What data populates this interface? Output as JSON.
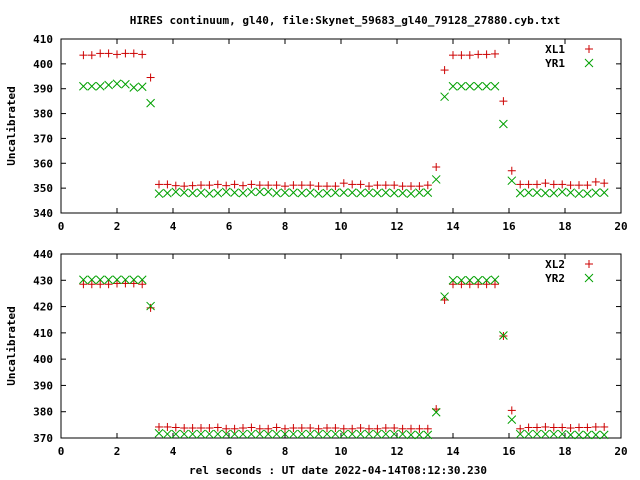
{
  "title": "HIRES continuum, gl40, file:Skynet_59683_gl40_79128_27880.cyb.txt",
  "xlabel": "rel seconds : UT date 2022-04-14T08:12:30.230",
  "chart_data": [
    {
      "type": "scatter",
      "ylabel": "Uncalibrated",
      "xlim": [
        0,
        20
      ],
      "ylim": [
        340,
        410
      ],
      "xticks": [
        0,
        2,
        4,
        6,
        8,
        10,
        12,
        14,
        16,
        18,
        20
      ],
      "yticks": [
        340,
        350,
        360,
        370,
        380,
        390,
        400,
        410
      ],
      "legend_position": "top-right",
      "series": [
        {
          "name": "XL1",
          "marker": "+",
          "color": "#cc0000",
          "x": [
            0.8,
            1.1,
            1.4,
            1.7,
            2.0,
            2.3,
            2.6,
            2.9,
            3.2,
            3.5,
            3.8,
            4.1,
            4.4,
            4.7,
            5.0,
            5.3,
            5.6,
            5.9,
            6.2,
            6.5,
            6.8,
            7.1,
            7.4,
            7.7,
            8.0,
            8.3,
            8.6,
            8.9,
            9.2,
            9.5,
            9.8,
            10.1,
            10.4,
            10.7,
            11.0,
            11.3,
            11.6,
            11.9,
            12.2,
            12.5,
            12.8,
            13.1,
            13.4,
            13.7,
            14.0,
            14.3,
            14.6,
            14.9,
            15.2,
            15.5,
            15.8,
            16.1,
            16.4,
            16.7,
            17.0,
            17.3,
            17.6,
            17.9,
            18.2,
            18.5,
            18.8,
            19.1,
            19.4
          ],
          "y": [
            403.5,
            403.5,
            404.2,
            404.2,
            403.8,
            404.2,
            404.2,
            403.8,
            394.5,
            351.5,
            351.5,
            351,
            350.8,
            351,
            351.2,
            351.2,
            351.5,
            351,
            351.5,
            351,
            351.5,
            351.2,
            351.2,
            351.2,
            350.8,
            351.2,
            351.2,
            351.2,
            350.8,
            350.8,
            350.8,
            352,
            351.5,
            351.5,
            350.8,
            351.2,
            351.2,
            351.2,
            350.8,
            350.8,
            350.8,
            351.2,
            358.5,
            397.5,
            403.5,
            403.5,
            403.5,
            403.8,
            403.8,
            404,
            385,
            357,
            351.5,
            351.5,
            351.5,
            352,
            351.5,
            351.5,
            351.2,
            351.2,
            351.2,
            352.5,
            352
          ]
        },
        {
          "name": "YR1",
          "marker": "x",
          "color": "#00a000",
          "x": [
            0.8,
            1.1,
            1.4,
            1.7,
            2.0,
            2.3,
            2.6,
            2.9,
            3.2,
            3.5,
            3.8,
            4.1,
            4.4,
            4.7,
            5.0,
            5.3,
            5.6,
            5.9,
            6.2,
            6.5,
            6.8,
            7.1,
            7.4,
            7.7,
            8.0,
            8.3,
            8.6,
            8.9,
            9.2,
            9.5,
            9.8,
            10.1,
            10.4,
            10.7,
            11.0,
            11.3,
            11.6,
            11.9,
            12.2,
            12.5,
            12.8,
            13.1,
            13.4,
            13.7,
            14.0,
            14.3,
            14.6,
            14.9,
            15.2,
            15.5,
            15.8,
            16.1,
            16.4,
            16.7,
            17.0,
            17.3,
            17.6,
            17.9,
            18.2,
            18.5,
            18.8,
            19.1,
            19.4
          ],
          "y": [
            391,
            391,
            391,
            391.5,
            392,
            391.8,
            390.5,
            390.8,
            384.2,
            347.8,
            348,
            348.5,
            348.2,
            348,
            348.2,
            347.8,
            348,
            348.5,
            348.2,
            348,
            348.5,
            348.5,
            348.5,
            348,
            348.2,
            348.2,
            348,
            348.2,
            347.8,
            348,
            348.2,
            348.2,
            348.2,
            348,
            348.2,
            348,
            348.2,
            348,
            348,
            347.8,
            348.2,
            348.2,
            353.5,
            386.8,
            391,
            391,
            391,
            391,
            391,
            391,
            375.8,
            353,
            348,
            348.2,
            348.2,
            348,
            348,
            348.5,
            348.2,
            347.8,
            347.8,
            348.2,
            348.2
          ]
        }
      ]
    },
    {
      "type": "scatter",
      "ylabel": "Uncalibrated",
      "xlim": [
        0,
        20
      ],
      "ylim": [
        370,
        440
      ],
      "xticks": [
        0,
        2,
        4,
        6,
        8,
        10,
        12,
        14,
        16,
        18,
        20
      ],
      "yticks": [
        370,
        380,
        390,
        400,
        410,
        420,
        430,
        440
      ],
      "legend_position": "top-right",
      "series": [
        {
          "name": "XL2",
          "marker": "+",
          "color": "#cc0000",
          "x": [
            0.8,
            1.1,
            1.4,
            1.7,
            2.0,
            2.3,
            2.6,
            2.9,
            3.2,
            3.5,
            3.8,
            4.1,
            4.4,
            4.7,
            5.0,
            5.3,
            5.6,
            5.9,
            6.2,
            6.5,
            6.8,
            7.1,
            7.4,
            7.7,
            8.0,
            8.3,
            8.6,
            8.9,
            9.2,
            9.5,
            9.8,
            10.1,
            10.4,
            10.7,
            11.0,
            11.3,
            11.6,
            11.9,
            12.2,
            12.5,
            12.8,
            13.1,
            13.4,
            13.7,
            14.0,
            14.3,
            14.6,
            14.9,
            15.2,
            15.5,
            15.8,
            16.1,
            16.4,
            16.7,
            17.0,
            17.3,
            17.6,
            17.9,
            18.2,
            18.5,
            18.8,
            19.1,
            19.4
          ],
          "y": [
            428.5,
            428.5,
            428.5,
            428.5,
            428.8,
            428.8,
            428.8,
            428.5,
            419.5,
            374.2,
            374.2,
            374,
            373.8,
            373.8,
            373.8,
            373.8,
            374,
            373.5,
            373.5,
            373.8,
            374,
            373.5,
            373.5,
            374,
            373.5,
            373.8,
            373.8,
            373.8,
            373.5,
            373.8,
            373.8,
            373.5,
            373.5,
            373.8,
            373.5,
            373.5,
            373.8,
            373.8,
            373.5,
            373.5,
            373.5,
            373.5,
            381,
            422.5,
            428.5,
            428.5,
            428.5,
            428.5,
            428.5,
            428.5,
            408.8,
            380.5,
            373.5,
            374,
            374,
            374.2,
            374,
            374,
            373.8,
            374,
            374,
            374.2,
            374.2
          ]
        },
        {
          "name": "YR2",
          "marker": "x",
          "color": "#00a000",
          "x": [
            0.8,
            1.1,
            1.4,
            1.7,
            2.0,
            2.3,
            2.6,
            2.9,
            3.2,
            3.5,
            3.8,
            4.1,
            4.4,
            4.7,
            5.0,
            5.3,
            5.6,
            5.9,
            6.2,
            6.5,
            6.8,
            7.1,
            7.4,
            7.7,
            8.0,
            8.3,
            8.6,
            8.9,
            9.2,
            9.5,
            9.8,
            10.1,
            10.4,
            10.7,
            11.0,
            11.3,
            11.6,
            11.9,
            12.2,
            12.5,
            12.8,
            13.1,
            13.4,
            13.7,
            14.0,
            14.3,
            14.6,
            14.9,
            15.2,
            15.5,
            15.8,
            16.1,
            16.4,
            16.7,
            17.0,
            17.3,
            17.6,
            17.9,
            18.2,
            18.5,
            18.8,
            19.1,
            19.4
          ],
          "y": [
            430.2,
            430.2,
            430.2,
            430.2,
            430.2,
            430.2,
            430.2,
            430.2,
            420.2,
            371.8,
            371.5,
            371.5,
            371.5,
            371.5,
            371.5,
            371.5,
            371.5,
            371.5,
            371.5,
            371.5,
            371.5,
            371.5,
            371.5,
            371.5,
            371.5,
            371.5,
            371.5,
            371.5,
            371.5,
            371.5,
            371.5,
            371.5,
            371.5,
            371.5,
            371.5,
            371.5,
            371.5,
            371.5,
            371.5,
            371.2,
            371.2,
            371.2,
            379.8,
            423.8,
            430,
            430,
            430,
            430,
            430,
            430.2,
            409,
            377,
            371.5,
            371.5,
            371.5,
            371.5,
            371.5,
            371.5,
            371.2,
            371.2,
            371.2,
            371.2,
            371.2
          ]
        }
      ]
    }
  ]
}
